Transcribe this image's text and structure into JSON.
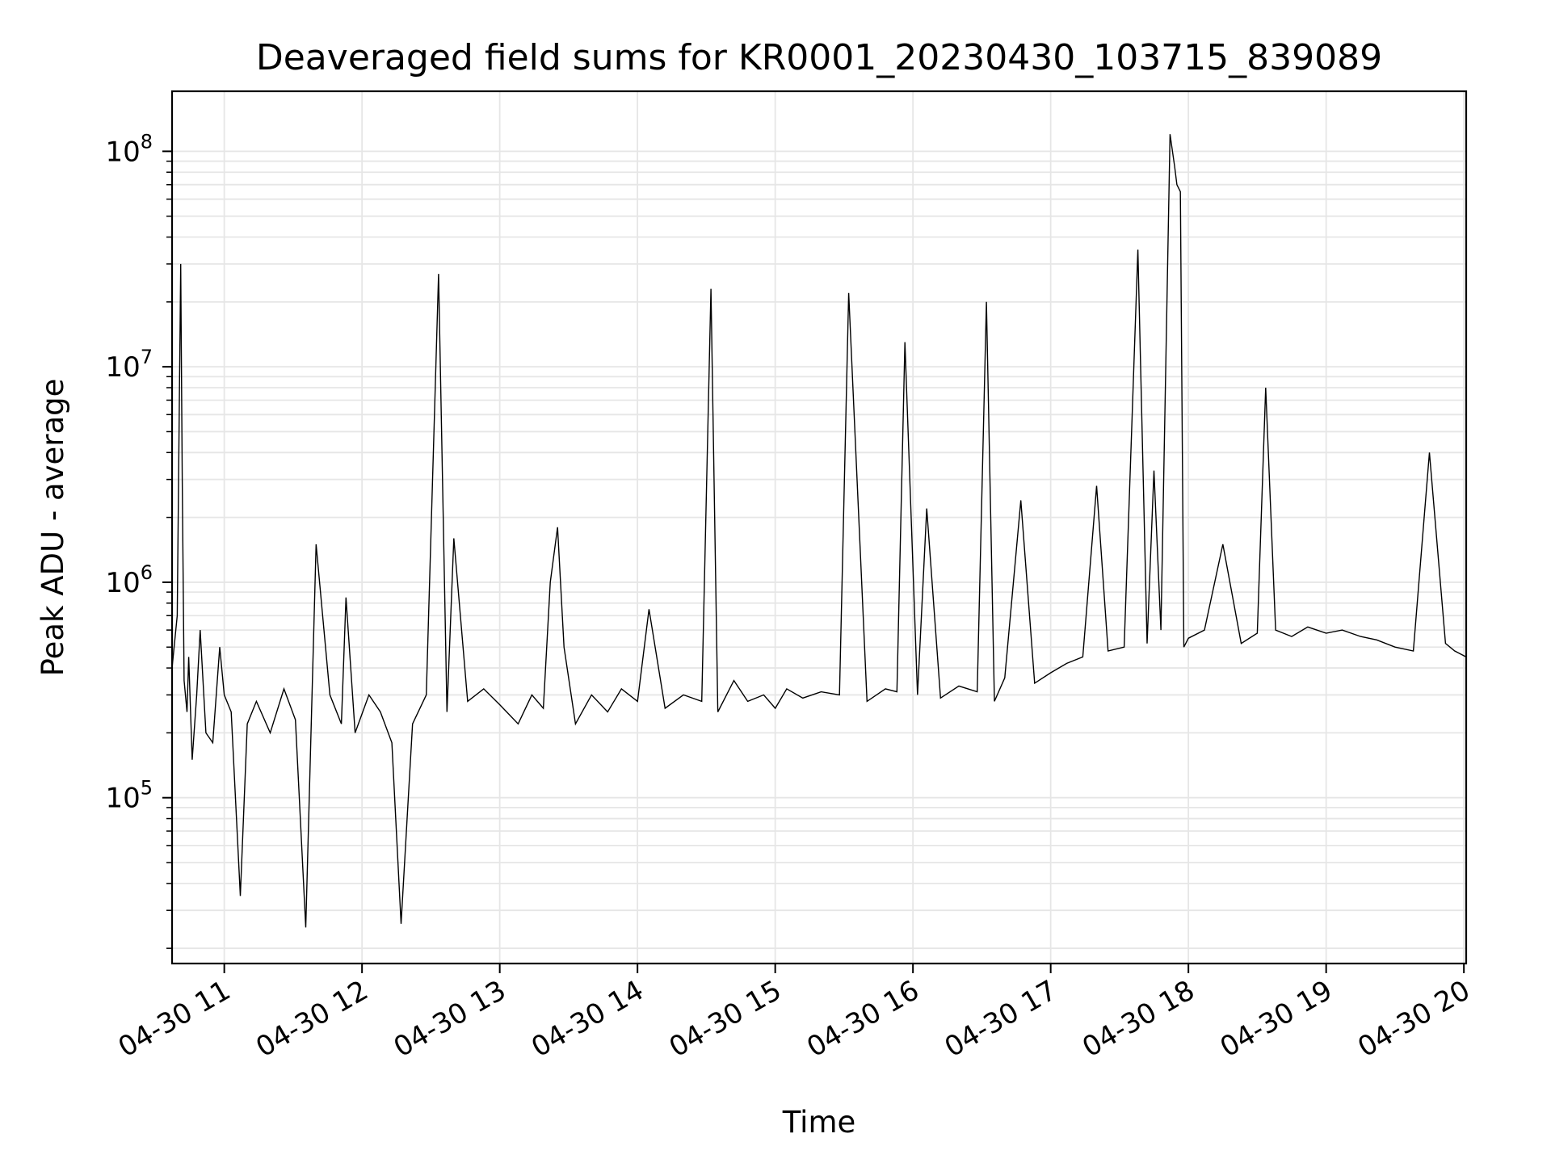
{
  "chart_data": {
    "type": "line",
    "title": "Deaveraged field sums for KR0001_20230430_103715_839089",
    "xlabel": "Time",
    "ylabel": "Peak ADU - average",
    "xlim": [
      "2023-04-30 10:37:15",
      "2023-04-30 20:01:00"
    ],
    "ylim": [
      17000,
      190000000
    ],
    "yscale": "log",
    "grid": true,
    "legend": "none",
    "line_color": "#000000",
    "grid_color": "#e6e6e6",
    "x_ticks": [
      {
        "value": "2023-04-30 11:00",
        "label": "04-30 11"
      },
      {
        "value": "2023-04-30 12:00",
        "label": "04-30 12"
      },
      {
        "value": "2023-04-30 13:00",
        "label": "04-30 13"
      },
      {
        "value": "2023-04-30 14:00",
        "label": "04-30 14"
      },
      {
        "value": "2023-04-30 15:00",
        "label": "04-30 15"
      },
      {
        "value": "2023-04-30 16:00",
        "label": "04-30 16"
      },
      {
        "value": "2023-04-30 17:00",
        "label": "04-30 17"
      },
      {
        "value": "2023-04-30 18:00",
        "label": "04-30 18"
      },
      {
        "value": "2023-04-30 19:00",
        "label": "04-30 19"
      },
      {
        "value": "2023-04-30 20:00",
        "label": "04-30 20"
      }
    ],
    "y_ticks": [
      {
        "value": 100000,
        "base": "10",
        "exp": "5"
      },
      {
        "value": 1000000,
        "base": "10",
        "exp": "6"
      },
      {
        "value": 10000000,
        "base": "10",
        "exp": "7"
      },
      {
        "value": 100000000,
        "base": "10",
        "exp": "8"
      }
    ],
    "series": [
      {
        "x": [
          "2023-04-30 10:37:15",
          "2023-04-30 10:39:30",
          "2023-04-30 10:41:00",
          "2023-04-30 10:41:40",
          "2023-04-30 10:42:30",
          "2023-04-30 10:43:45",
          "2023-04-30 10:44:30",
          "2023-04-30 10:46:00",
          "2023-04-30 10:48:00",
          "2023-04-30 10:49:30",
          "2023-04-30 10:52:00",
          "2023-04-30 10:55:00",
          "2023-04-30 10:58:00",
          "2023-04-30 11:00:00",
          "2023-04-30 11:03:00",
          "2023-04-30 11:07:00",
          "2023-04-30 11:10:00",
          "2023-04-30 11:14:00",
          "2023-04-30 11:20:00",
          "2023-04-30 11:26:00",
          "2023-04-30 11:31:00",
          "2023-04-30 11:35:30",
          "2023-04-30 11:40:00",
          "2023-04-30 11:46:00",
          "2023-04-30 11:51:00",
          "2023-04-30 11:53:00",
          "2023-04-30 11:57:00",
          "2023-04-30 12:03:00",
          "2023-04-30 12:08:00",
          "2023-04-30 12:13:00",
          "2023-04-30 12:17:00",
          "2023-04-30 12:22:00",
          "2023-04-30 12:28:00",
          "2023-04-30 12:33:20",
          "2023-04-30 12:37:00",
          "2023-04-30 12:40:00",
          "2023-04-30 12:46:00",
          "2023-04-30 12:53:00",
          "2023-04-30 13:00:00",
          "2023-04-30 13:08:00",
          "2023-04-30 13:14:00",
          "2023-04-30 13:19:00",
          "2023-04-30 13:22:00",
          "2023-04-30 13:25:10",
          "2023-04-30 13:28:00",
          "2023-04-30 13:33:00",
          "2023-04-30 13:40:00",
          "2023-04-30 13:47:00",
          "2023-04-30 13:53:00",
          "2023-04-30 14:00:00",
          "2023-04-30 14:05:00",
          "2023-04-30 14:12:00",
          "2023-04-30 14:20:00",
          "2023-04-30 14:28:00",
          "2023-04-30 14:32:00",
          "2023-04-30 14:35:00",
          "2023-04-30 14:42:00",
          "2023-04-30 14:48:00",
          "2023-04-30 14:55:00",
          "2023-04-30 15:00:00",
          "2023-04-30 15:05:00",
          "2023-04-30 15:12:00",
          "2023-04-30 15:20:00",
          "2023-04-30 15:28:00",
          "2023-04-30 15:32:00",
          "2023-04-30 15:40:00",
          "2023-04-30 15:48:00",
          "2023-04-30 15:53:00",
          "2023-04-30 15:56:30",
          "2023-04-30 16:02:00",
          "2023-04-30 16:06:00",
          "2023-04-30 16:12:00",
          "2023-04-30 16:20:00",
          "2023-04-30 16:28:00",
          "2023-04-30 16:32:00",
          "2023-04-30 16:35:30",
          "2023-04-30 16:40:00",
          "2023-04-30 16:47:00",
          "2023-04-30 16:53:00",
          "2023-04-30 17:00:00",
          "2023-04-30 17:07:00",
          "2023-04-30 17:14:00",
          "2023-04-30 17:20:00",
          "2023-04-30 17:25:00",
          "2023-04-30 17:32:00",
          "2023-04-30 17:38:00",
          "2023-04-30 17:42:00",
          "2023-04-30 17:45:00",
          "2023-04-30 17:48:00",
          "2023-04-30 17:52:00",
          "2023-04-30 17:54:00",
          "2023-04-30 17:55:00",
          "2023-04-30 17:56:30",
          "2023-04-30 17:58:00",
          "2023-04-30 18:00:00",
          "2023-04-30 18:07:00",
          "2023-04-30 18:15:00",
          "2023-04-30 18:23:00",
          "2023-04-30 18:30:00",
          "2023-04-30 18:33:40",
          "2023-04-30 18:38:00",
          "2023-04-30 18:45:00",
          "2023-04-30 18:52:00",
          "2023-04-30 19:00:00",
          "2023-04-30 19:07:00",
          "2023-04-30 19:15:00",
          "2023-04-30 19:22:00",
          "2023-04-30 19:30:00",
          "2023-04-30 19:38:00",
          "2023-04-30 19:45:00",
          "2023-04-30 19:52:00",
          "2023-04-30 19:56:00",
          "2023-04-30 20:01:00"
        ],
        "y": [
          400000,
          700000,
          30000000,
          3000000,
          350000,
          250000,
          450000,
          150000,
          300000,
          600000,
          200000,
          180000,
          500000,
          300000,
          250000,
          35000,
          220000,
          280000,
          200000,
          320000,
          230000,
          25000,
          1500000,
          300000,
          220000,
          850000,
          200000,
          300000,
          250000,
          180000,
          26000,
          220000,
          300000,
          27000000,
          250000,
          1600000,
          280000,
          320000,
          270000,
          220000,
          300000,
          260000,
          1000000,
          1800000,
          500000,
          220000,
          300000,
          250000,
          320000,
          280000,
          750000,
          260000,
          300000,
          280000,
          23000000,
          250000,
          350000,
          280000,
          300000,
          260000,
          320000,
          290000,
          310000,
          300000,
          22000000,
          280000,
          320000,
          310000,
          13000000,
          300000,
          2200000,
          290000,
          330000,
          310000,
          20000000,
          280000,
          360000,
          2400000,
          340000,
          380000,
          420000,
          450000,
          2800000,
          480000,
          500000,
          35000000,
          520000,
          3300000,
          600000,
          120000000,
          85000000,
          70000000,
          65000000,
          500000,
          550000,
          600000,
          1500000,
          520000,
          580000,
          8000000,
          600000,
          560000,
          620000,
          580000,
          600000,
          560000,
          540000,
          500000,
          480000,
          4000000,
          520000,
          480000,
          450000
        ]
      }
    ]
  }
}
